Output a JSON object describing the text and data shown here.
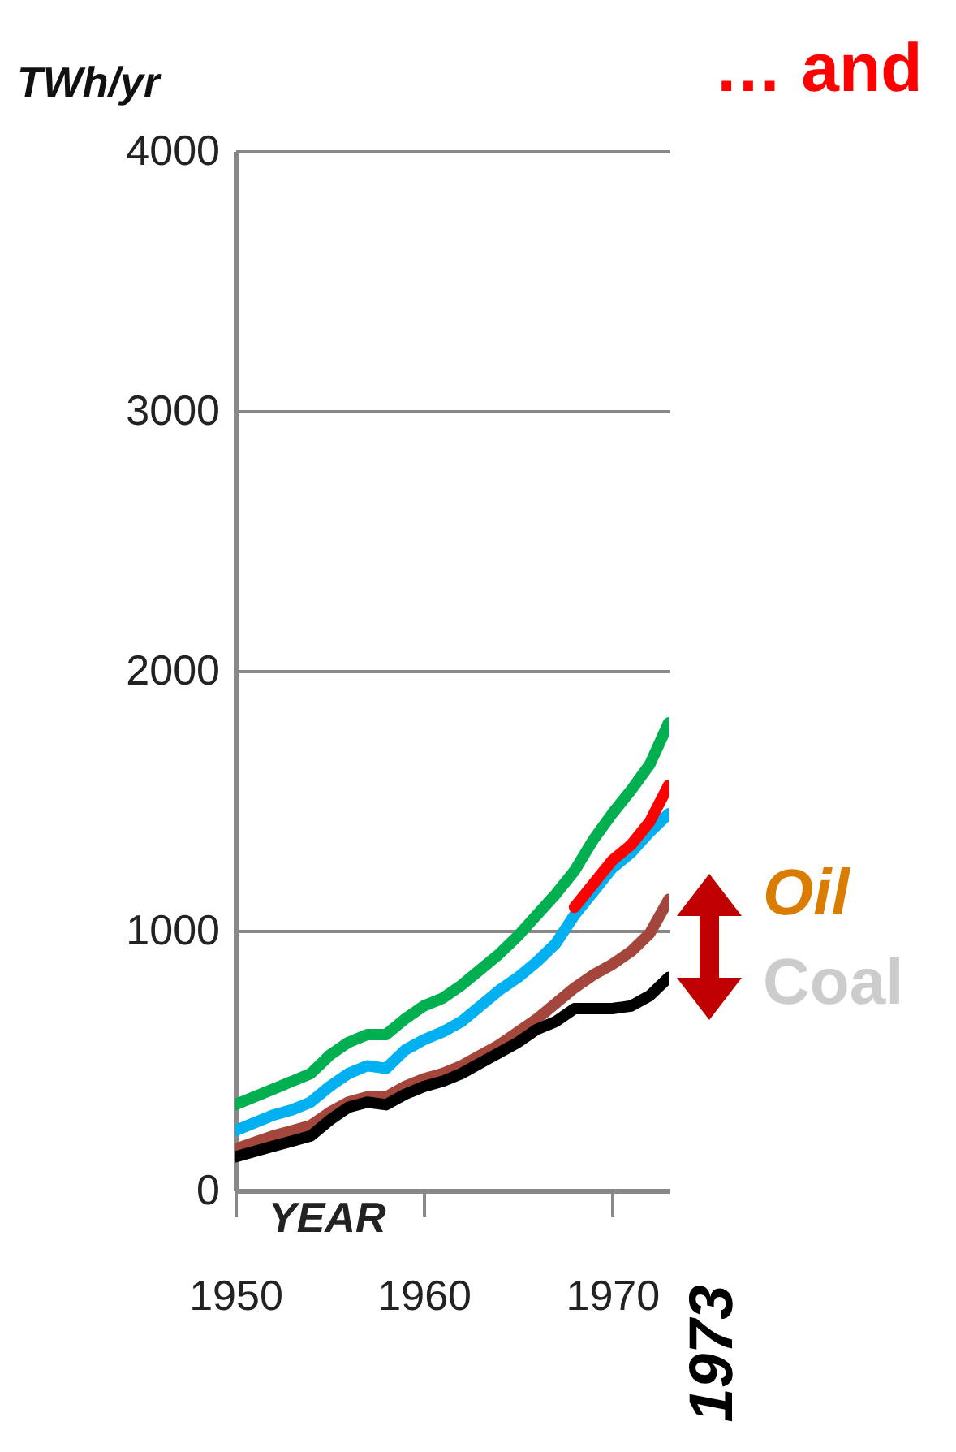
{
  "chart_data": {
    "type": "line",
    "title": "… and",
    "ylabel": "TWh/yr",
    "xlabel": "YEAR",
    "x": [
      1950,
      1951,
      1952,
      1953,
      1954,
      1955,
      1956,
      1957,
      1958,
      1959,
      1960,
      1961,
      1962,
      1963,
      1964,
      1965,
      1966,
      1967,
      1968,
      1969,
      1970,
      1971,
      1972,
      1973
    ],
    "series": [
      {
        "color": "#00b050",
        "values": [
          330,
          360,
          390,
          420,
          450,
          520,
          570,
          600,
          600,
          660,
          710,
          740,
          790,
          850,
          910,
          980,
          1060,
          1140,
          1230,
          1350,
          1450,
          1540,
          1640,
          1800
        ]
      },
      {
        "color": "#00b0f0",
        "values": [
          230,
          260,
          290,
          310,
          340,
          400,
          450,
          480,
          470,
          540,
          580,
          610,
          650,
          710,
          770,
          820,
          880,
          950,
          1060,
          1150,
          1240,
          1300,
          1380,
          1450
        ]
      },
      {
        "color": "#ff0000",
        "x": [
          1968,
          1969,
          1970,
          1971,
          1972,
          1973
        ],
        "values": [
          1090,
          1180,
          1270,
          1330,
          1420,
          1560
        ]
      },
      {
        "color": "#a5463c",
        "values": [
          160,
          185,
          210,
          230,
          250,
          300,
          340,
          360,
          360,
          400,
          430,
          450,
          480,
          520,
          560,
          610,
          660,
          720,
          780,
          830,
          870,
          920,
          990,
          1120
        ]
      },
      {
        "color": "#000000",
        "values": [
          130,
          150,
          170,
          190,
          210,
          270,
          320,
          340,
          330,
          370,
          400,
          420,
          450,
          490,
          530,
          570,
          620,
          650,
          700,
          700,
          700,
          710,
          750,
          820
        ]
      }
    ],
    "xlim": [
      1950,
      1973
    ],
    "xticks": [
      1950,
      1960,
      1970
    ],
    "ylim": [
      0,
      4000
    ],
    "yticks": [
      0,
      1000,
      2000,
      3000,
      4000
    ],
    "grid": "y",
    "annotations": [
      "Oil",
      "Coal",
      "1973"
    ]
  }
}
